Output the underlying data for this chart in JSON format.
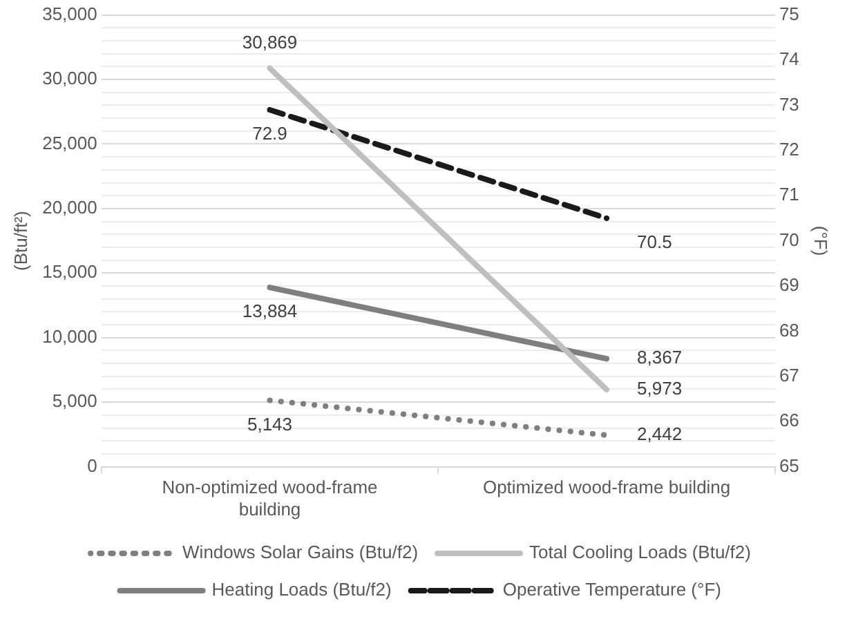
{
  "chart_data": {
    "type": "line",
    "categories": [
      "Non-optimized wood-frame building",
      "Optimized wood-frame building"
    ],
    "series": [
      {
        "name": "Windows Solar Gains (Btu/f2)",
        "color": "#7f7f7f",
        "values": [
          5143,
          2442
        ],
        "value_labels": [
          "5,143",
          "2,442"
        ],
        "line_style": "dotted"
      },
      {
        "name": "Total Cooling Loads (Btu/f2)",
        "color": "#bfbfbf",
        "values": [
          30869,
          5973
        ],
        "value_labels": [
          "30,869",
          "5,973"
        ],
        "line_style": "solid"
      },
      {
        "name": "Heating Loads (Btu/f2)",
        "color": "#7f7f7f",
        "values": [
          13884,
          8367
        ],
        "value_labels": [
          "13,884",
          "8,367"
        ],
        "line_style": "solid"
      },
      {
        "name": "Operative Temperature (°F)",
        "color": "#1a1a1a",
        "values": [
          72.9,
          70.5
        ],
        "value_labels": [
          "72.9",
          "70.5"
        ],
        "line_style": "dashed",
        "axis": "y2"
      }
    ],
    "ylabel": "(Btu/ft²)",
    "y2label": "(°F)",
    "ylim": [
      0,
      35000
    ],
    "yticks": [
      0,
      {
        "value": 1000,
        "label": null
      },
      {
        "value": 2000,
        "label": null
      },
      {
        "value": 3000,
        "label": null
      },
      {
        "value": 4000,
        "label": null
      },
      {
        "value": 5000,
        "label": "5,000"
      },
      {
        "value": 6000,
        "label": null
      },
      {
        "value": 7000,
        "label": null
      },
      {
        "value": 8000,
        "label": null
      },
      {
        "value": 9000,
        "label": null
      },
      {
        "value": 10000,
        "label": "10,000"
      },
      {
        "value": 11000,
        "label": null
      },
      {
        "value": 12000,
        "label": null
      },
      {
        "value": 13000,
        "label": null
      },
      {
        "value": 14000,
        "label": null
      },
      {
        "value": 15000,
        "label": "15,000"
      },
      {
        "value": 16000,
        "label": null
      },
      {
        "value": 17000,
        "label": null
      },
      {
        "value": 18000,
        "label": null
      },
      {
        "value": 19000,
        "label": null
      },
      {
        "value": 20000,
        "label": "20,000"
      },
      {
        "value": 21000,
        "label": null
      },
      {
        "value": 22000,
        "label": null
      },
      {
        "value": 23000,
        "label": null
      },
      {
        "value": 24000,
        "label": null
      },
      {
        "value": 25000,
        "label": "25,000"
      },
      {
        "value": 26000,
        "label": null
      },
      {
        "value": 27000,
        "label": null
      },
      {
        "value": 28000,
        "label": null
      },
      {
        "value": 29000,
        "label": null
      },
      {
        "value": 30000,
        "label": "30,000"
      },
      {
        "value": 31000,
        "label": null
      },
      {
        "value": 32000,
        "label": null
      },
      {
        "value": 33000,
        "label": null
      },
      {
        "value": 34000,
        "label": null
      },
      {
        "value": 35000,
        "label": "35,000"
      }
    ],
    "y2lim": [
      65,
      75
    ],
    "y2ticks": [
      65,
      66,
      67,
      68,
      69,
      70,
      71,
      72,
      73,
      74,
      75
    ],
    "grid": "y",
    "legend": "bottom",
    "marker": "none"
  }
}
